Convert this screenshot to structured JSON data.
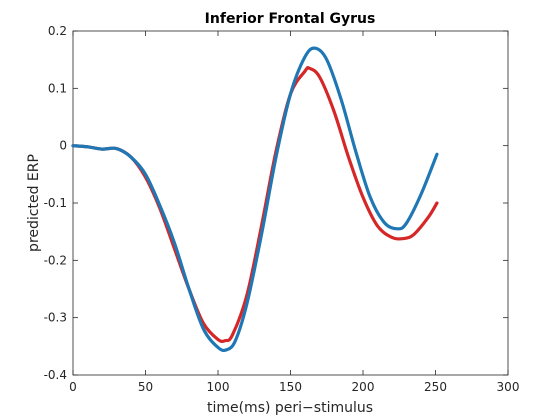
{
  "chart_data": {
    "type": "line",
    "title": "Inferior Frontal Gyrus",
    "xlabel": "time(ms) peri−stimulus",
    "ylabel": "predicted ERP",
    "xlim": [
      0,
      300
    ],
    "ylim": [
      -0.4,
      0.2
    ],
    "xticks": [
      0,
      50,
      100,
      150,
      200,
      250,
      300
    ],
    "xtick_labels": [
      "0",
      "50",
      "100",
      "150",
      "200",
      "250",
      "300"
    ],
    "yticks": [
      -0.4,
      -0.3,
      -0.2,
      -0.1,
      0,
      0.1,
      0.2
    ],
    "ytick_labels": [
      "-0.4",
      "-0.3",
      "-0.2",
      "-0.1",
      "0",
      "0.1",
      "0.2"
    ],
    "grid": false,
    "series": [
      {
        "color": "#d62728",
        "x": [
          0,
          10,
          20,
          30,
          40,
          50,
          60,
          70,
          80,
          90,
          100,
          105,
          110,
          120,
          130,
          140,
          150,
          160,
          163,
          170,
          180,
          190,
          200,
          210,
          220,
          228,
          235,
          245,
          251
        ],
        "y": [
          0,
          -0.002,
          -0.006,
          -0.005,
          -0.02,
          -0.055,
          -0.11,
          -0.18,
          -0.25,
          -0.31,
          -0.338,
          -0.34,
          -0.33,
          -0.26,
          -0.14,
          -0.01,
          0.09,
          0.13,
          0.135,
          0.12,
          0.06,
          -0.02,
          -0.09,
          -0.14,
          -0.16,
          -0.162,
          -0.155,
          -0.125,
          -0.1
        ]
      },
      {
        "color": "#1f77b4",
        "x": [
          0,
          10,
          20,
          30,
          40,
          50,
          60,
          70,
          80,
          90,
          100,
          106,
          112,
          120,
          130,
          140,
          150,
          160,
          167,
          175,
          185,
          195,
          205,
          215,
          224,
          230,
          240,
          251
        ],
        "y": [
          0,
          -0.002,
          -0.006,
          -0.005,
          -0.02,
          -0.05,
          -0.105,
          -0.17,
          -0.25,
          -0.32,
          -0.352,
          -0.356,
          -0.34,
          -0.275,
          -0.155,
          -0.02,
          0.09,
          0.155,
          0.17,
          0.15,
          0.08,
          -0.01,
          -0.09,
          -0.135,
          -0.145,
          -0.135,
          -0.085,
          -0.015
        ]
      }
    ]
  }
}
